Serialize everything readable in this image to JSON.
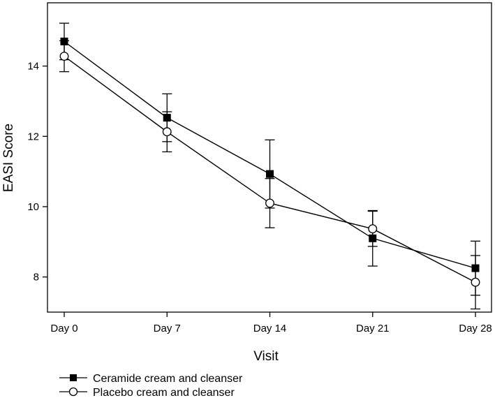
{
  "colors": {
    "axis": "#000000",
    "series_line": "#000000",
    "filled_marker": "#000000",
    "open_marker_fill": "#ffffff",
    "background": "#ffffff"
  },
  "chart_data": {
    "type": "line",
    "title": "",
    "xlabel": "Visit",
    "ylabel": "EASI Score",
    "categories": [
      "Day 0",
      "Day 7",
      "Day 14",
      "Day 21",
      "Day 28"
    ],
    "ylim": [
      7,
      15.8
    ],
    "yticks": [
      8,
      10,
      12,
      14
    ],
    "grid": false,
    "legend_position": "bottom-left",
    "series": [
      {
        "name": "Ceramide cream and cleanser",
        "marker": "filled-square",
        "values": [
          14.7,
          12.53,
          10.93,
          9.1,
          8.25
        ],
        "error": [
          0.52,
          0.68,
          0.97,
          0.79,
          0.77
        ]
      },
      {
        "name": "Placebo cream and cleanser",
        "marker": "open-circle",
        "values": [
          14.28,
          12.13,
          10.1,
          9.37,
          7.85
        ],
        "error": [
          0.44,
          0.57,
          0.7,
          0.5,
          0.76
        ]
      }
    ]
  }
}
